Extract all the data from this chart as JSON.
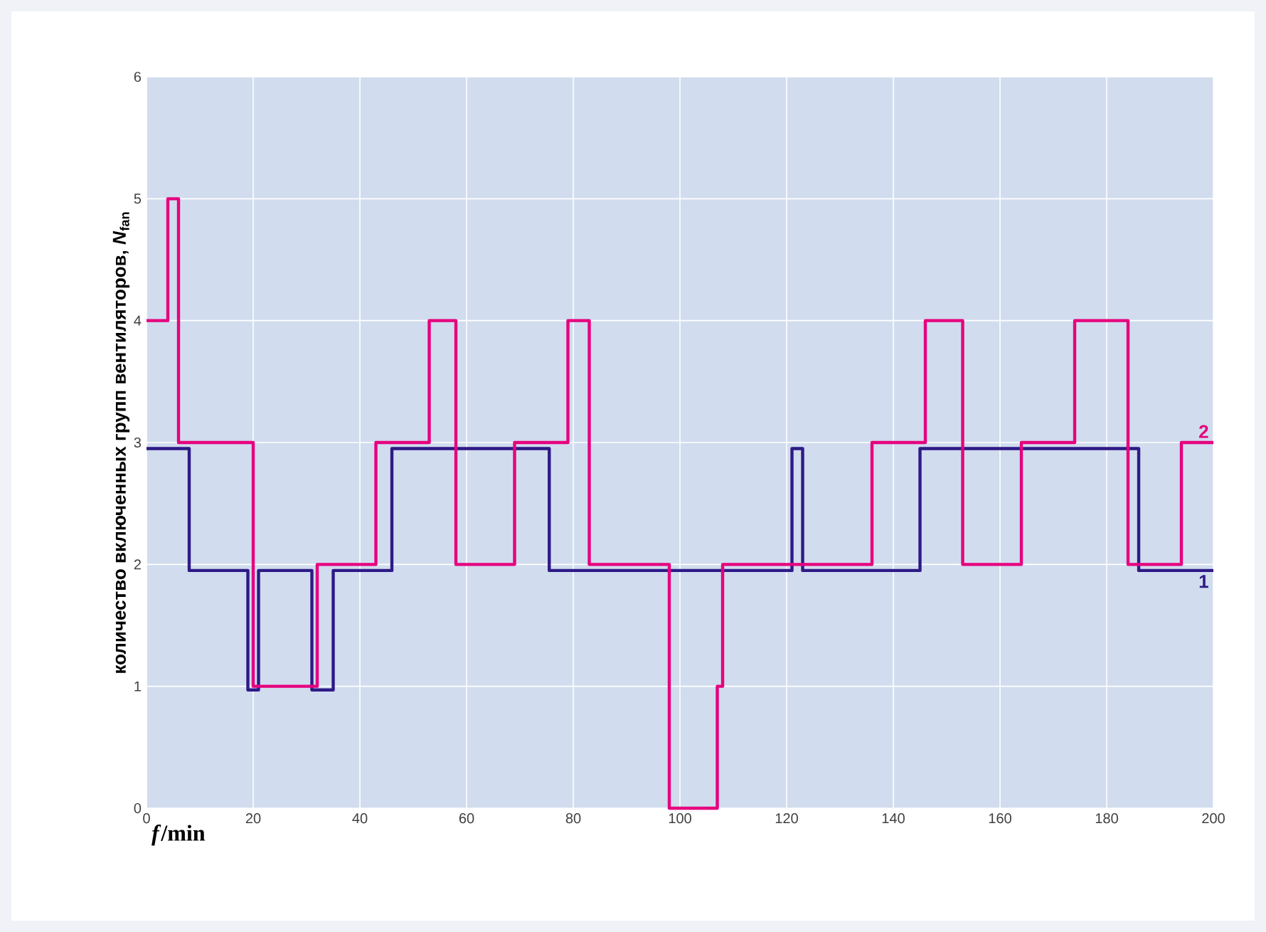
{
  "chart_data": {
    "type": "step",
    "xlabel": "*f*/min",
    "ylabel": "количество включенных групп вентиляторов, *N*$_{fan}$",
    "xlim": [
      0,
      200
    ],
    "ylim": [
      0,
      6
    ],
    "xticks": [
      0,
      20,
      40,
      60,
      80,
      100,
      120,
      140,
      160,
      180,
      200
    ],
    "yticks": [
      0,
      1,
      2,
      3,
      4,
      5,
      6
    ],
    "grid": true,
    "series": [
      {
        "name": "1",
        "color": "#2e1a87",
        "x": [
          0,
          8,
          19,
          21,
          31,
          35,
          46,
          75.5,
          121,
          123,
          145,
          186,
          200
        ],
        "values": [
          2.95,
          1.95,
          0.97,
          1.95,
          0.97,
          1.95,
          2.95,
          1.95,
          2.95,
          1.95,
          2.95,
          1.95,
          1.95
        ]
      },
      {
        "name": "2",
        "color": "#e6007e",
        "x": [
          0,
          4,
          6,
          20,
          32,
          43,
          53,
          58,
          69,
          79,
          83,
          98,
          107,
          108,
          136,
          146,
          153,
          164,
          174,
          184,
          194,
          200
        ],
        "values": [
          4,
          5,
          3,
          1,
          2,
          3,
          4,
          2,
          3,
          4,
          2,
          0,
          1,
          2,
          3,
          4,
          2,
          3,
          4,
          2,
          3,
          3
        ]
      }
    ]
  }
}
